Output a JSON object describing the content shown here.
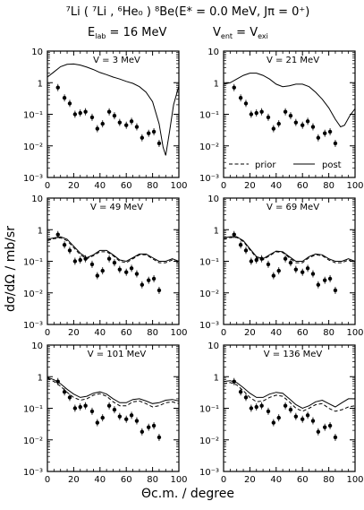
{
  "figure": {
    "title_reaction": "⁷Li ( ⁷Li , ⁶He₀ ) ⁸Be(E* = 0.0 MeV, Jπ = 0⁺)",
    "title_conditions_left": "E",
    "title_conditions_left_sub": "lab",
    "title_conditions_left_rest": " = 16 MeV",
    "title_conditions_right": "V",
    "title_conditions_right_sub1": "ent",
    "title_conditions_right_mid": " = V",
    "title_conditions_right_sub2": "exi",
    "ylabel": "dσ/dΩ  /  mb/sr",
    "xlabel": "Θc.m. / degree",
    "legend_prior": "prior",
    "legend_post": "post"
  },
  "axes": {
    "xticks": [
      "0",
      "20",
      "40",
      "60",
      "80",
      "100"
    ],
    "yticks": [
      "10",
      "1",
      "10⁻¹",
      "10⁻²",
      "10⁻³"
    ],
    "xlim": [
      0,
      100
    ],
    "ylim_log10": [
      -3,
      1
    ]
  },
  "chart_data": [
    {
      "type": "line+scatter",
      "label": "V = 3 MeV",
      "x_data": [
        8,
        13,
        17,
        21,
        25,
        29,
        34,
        38,
        42,
        47,
        51,
        55,
        60,
        64,
        68,
        72,
        77,
        81,
        85
      ],
      "y_data": [
        0.7,
        0.33,
        0.22,
        0.1,
        0.11,
        0.12,
        0.08,
        0.035,
        0.05,
        0.12,
        0.09,
        0.055,
        0.045,
        0.06,
        0.04,
        0.018,
        0.025,
        0.028,
        0.012
      ],
      "series": [
        {
          "name": "post",
          "style": "solid",
          "x": [
            0,
            5,
            10,
            15,
            20,
            25,
            30,
            35,
            40,
            45,
            50,
            55,
            60,
            65,
            70,
            75,
            80,
            85,
            88,
            90,
            93,
            96,
            100
          ],
          "y": [
            1.5,
            2.2,
            3.2,
            3.8,
            3.9,
            3.6,
            3.1,
            2.6,
            2.1,
            1.8,
            1.5,
            1.3,
            1.1,
            0.95,
            0.75,
            0.5,
            0.25,
            0.05,
            0.009,
            0.005,
            0.03,
            0.2,
            0.8
          ]
        }
      ]
    },
    {
      "type": "line+scatter",
      "label": "V = 21 MeV",
      "legend": true,
      "x_data": [
        8,
        13,
        17,
        21,
        25,
        29,
        34,
        38,
        42,
        47,
        51,
        55,
        60,
        64,
        68,
        72,
        77,
        81,
        85
      ],
      "y_data": [
        0.7,
        0.33,
        0.22,
        0.1,
        0.11,
        0.12,
        0.08,
        0.035,
        0.05,
        0.12,
        0.09,
        0.055,
        0.045,
        0.06,
        0.04,
        0.018,
        0.025,
        0.028,
        0.012
      ],
      "series": [
        {
          "name": "post",
          "style": "solid",
          "x": [
            0,
            5,
            10,
            15,
            20,
            25,
            30,
            35,
            40,
            45,
            50,
            55,
            60,
            65,
            70,
            75,
            80,
            85,
            89,
            92,
            96,
            100
          ],
          "y": [
            0.9,
            1.0,
            1.3,
            1.7,
            2.0,
            2.0,
            1.7,
            1.3,
            0.9,
            0.75,
            0.8,
            0.9,
            0.9,
            0.75,
            0.5,
            0.3,
            0.16,
            0.07,
            0.04,
            0.045,
            0.09,
            0.15
          ]
        }
      ]
    },
    {
      "type": "line+scatter",
      "label": "V = 49 MeV",
      "x_data": [
        8,
        13,
        17,
        21,
        25,
        29,
        34,
        38,
        42,
        47,
        51,
        55,
        60,
        64,
        68,
        72,
        77,
        81,
        85
      ],
      "y_data": [
        0.7,
        0.33,
        0.22,
        0.1,
        0.11,
        0.12,
        0.08,
        0.035,
        0.05,
        0.12,
        0.09,
        0.055,
        0.045,
        0.06,
        0.04,
        0.018,
        0.025,
        0.028,
        0.012
      ],
      "series": [
        {
          "name": "post",
          "style": "solid",
          "x": [
            0,
            5,
            10,
            15,
            20,
            25,
            30,
            35,
            40,
            45,
            50,
            55,
            60,
            65,
            70,
            75,
            80,
            85,
            90,
            95,
            100
          ],
          "y": [
            0.5,
            0.55,
            0.6,
            0.5,
            0.3,
            0.18,
            0.13,
            0.16,
            0.22,
            0.22,
            0.16,
            0.11,
            0.1,
            0.13,
            0.17,
            0.17,
            0.13,
            0.1,
            0.1,
            0.12,
            0.1
          ]
        },
        {
          "name": "prior",
          "style": "dashed",
          "x": [
            0,
            5,
            10,
            15,
            20,
            25,
            30,
            35,
            40,
            45,
            50,
            55,
            60,
            65,
            70,
            75,
            80,
            85,
            90,
            95,
            100
          ],
          "y": [
            0.45,
            0.52,
            0.55,
            0.45,
            0.27,
            0.16,
            0.12,
            0.15,
            0.2,
            0.2,
            0.15,
            0.1,
            0.09,
            0.12,
            0.16,
            0.16,
            0.12,
            0.09,
            0.09,
            0.11,
            0.09
          ]
        }
      ]
    },
    {
      "type": "line+scatter",
      "label": "V = 69 MeV",
      "x_data": [
        8,
        13,
        17,
        21,
        25,
        29,
        34,
        38,
        42,
        47,
        51,
        55,
        60,
        64,
        68,
        72,
        77,
        81,
        85
      ],
      "y_data": [
        0.7,
        0.33,
        0.22,
        0.1,
        0.11,
        0.12,
        0.08,
        0.035,
        0.05,
        0.12,
        0.09,
        0.055,
        0.045,
        0.06,
        0.04,
        0.018,
        0.025,
        0.028,
        0.012
      ],
      "series": [
        {
          "name": "post",
          "style": "solid",
          "x": [
            0,
            5,
            10,
            15,
            20,
            25,
            30,
            35,
            40,
            45,
            50,
            55,
            60,
            65,
            70,
            75,
            80,
            85,
            90,
            95,
            100
          ],
          "y": [
            0.55,
            0.6,
            0.6,
            0.45,
            0.25,
            0.14,
            0.12,
            0.16,
            0.21,
            0.2,
            0.14,
            0.1,
            0.1,
            0.14,
            0.17,
            0.16,
            0.12,
            0.1,
            0.1,
            0.12,
            0.1
          ]
        },
        {
          "name": "prior",
          "style": "dashed",
          "x": [
            0,
            5,
            10,
            15,
            20,
            25,
            30,
            35,
            40,
            45,
            50,
            55,
            60,
            65,
            70,
            75,
            80,
            85,
            90,
            95,
            100
          ],
          "y": [
            0.5,
            0.56,
            0.57,
            0.42,
            0.23,
            0.13,
            0.11,
            0.15,
            0.2,
            0.19,
            0.13,
            0.09,
            0.09,
            0.13,
            0.16,
            0.15,
            0.11,
            0.09,
            0.09,
            0.11,
            0.09
          ]
        }
      ]
    },
    {
      "type": "line+scatter",
      "label": "V = 101 MeV",
      "x_data": [
        8,
        13,
        17,
        21,
        25,
        29,
        34,
        38,
        42,
        47,
        51,
        55,
        60,
        64,
        68,
        72,
        77,
        81,
        85
      ],
      "y_data": [
        0.7,
        0.33,
        0.22,
        0.1,
        0.11,
        0.12,
        0.08,
        0.035,
        0.05,
        0.12,
        0.09,
        0.055,
        0.045,
        0.06,
        0.04,
        0.018,
        0.025,
        0.028,
        0.012
      ],
      "series": [
        {
          "name": "post",
          "style": "solid",
          "x": [
            0,
            5,
            10,
            15,
            20,
            25,
            30,
            35,
            40,
            45,
            50,
            55,
            60,
            65,
            70,
            75,
            80,
            85,
            90,
            95,
            100
          ],
          "y": [
            0.95,
            0.8,
            0.6,
            0.4,
            0.28,
            0.22,
            0.24,
            0.3,
            0.33,
            0.28,
            0.2,
            0.15,
            0.15,
            0.19,
            0.2,
            0.17,
            0.14,
            0.15,
            0.18,
            0.19,
            0.17
          ]
        },
        {
          "name": "prior",
          "style": "dashed",
          "x": [
            0,
            5,
            10,
            15,
            20,
            25,
            30,
            35,
            40,
            45,
            50,
            55,
            60,
            65,
            70,
            75,
            80,
            85,
            90,
            95,
            100
          ],
          "y": [
            0.9,
            0.7,
            0.5,
            0.32,
            0.22,
            0.18,
            0.2,
            0.26,
            0.29,
            0.24,
            0.16,
            0.12,
            0.12,
            0.16,
            0.17,
            0.14,
            0.11,
            0.12,
            0.15,
            0.16,
            0.14
          ]
        }
      ]
    },
    {
      "type": "line+scatter",
      "label": "V = 136 MeV",
      "x_data": [
        8,
        13,
        17,
        21,
        25,
        29,
        34,
        38,
        42,
        47,
        51,
        55,
        60,
        64,
        68,
        72,
        77,
        81,
        85
      ],
      "y_data": [
        0.7,
        0.33,
        0.22,
        0.1,
        0.11,
        0.12,
        0.08,
        0.035,
        0.05,
        0.12,
        0.09,
        0.055,
        0.045,
        0.06,
        0.04,
        0.018,
        0.025,
        0.028,
        0.012
      ],
      "series": [
        {
          "name": "post",
          "style": "solid",
          "x": [
            0,
            5,
            10,
            15,
            20,
            25,
            30,
            35,
            40,
            45,
            50,
            55,
            60,
            65,
            70,
            75,
            80,
            85,
            90,
            95,
            100
          ],
          "y": [
            0.7,
            0.75,
            0.65,
            0.45,
            0.3,
            0.22,
            0.22,
            0.28,
            0.32,
            0.3,
            0.2,
            0.13,
            0.1,
            0.12,
            0.16,
            0.18,
            0.14,
            0.11,
            0.15,
            0.2,
            0.2
          ]
        },
        {
          "name": "prior",
          "style": "dashed",
          "x": [
            0,
            5,
            10,
            15,
            20,
            25,
            30,
            35,
            40,
            45,
            50,
            55,
            60,
            65,
            70,
            75,
            80,
            85,
            90,
            95,
            100
          ],
          "y": [
            0.6,
            0.65,
            0.55,
            0.36,
            0.22,
            0.16,
            0.17,
            0.22,
            0.26,
            0.24,
            0.16,
            0.1,
            0.08,
            0.1,
            0.13,
            0.14,
            0.1,
            0.08,
            0.09,
            0.11,
            0.12
          ]
        }
      ]
    }
  ]
}
